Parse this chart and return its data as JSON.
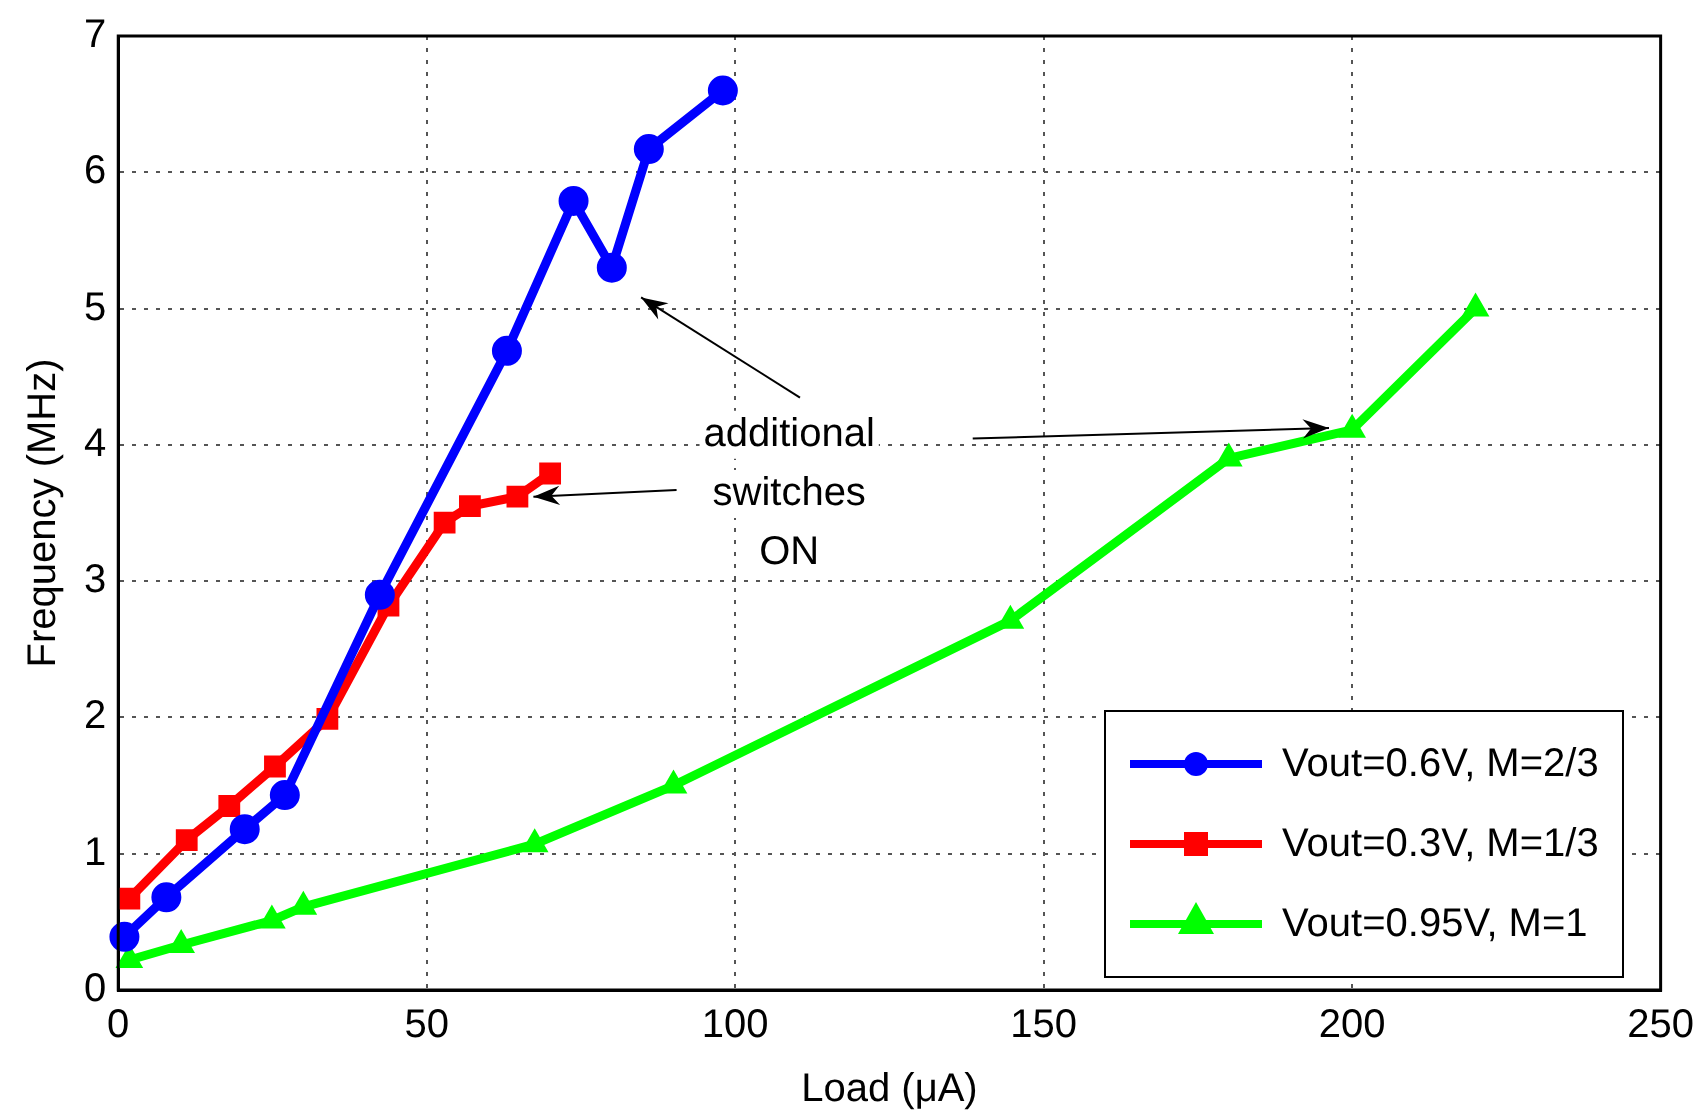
{
  "chart_data": {
    "type": "line",
    "xlabel": "Load (μA)",
    "ylabel": "Frequency (MHz)",
    "xlim": [
      0,
      250
    ],
    "xticks": [
      0,
      50,
      100,
      150,
      200,
      250
    ],
    "ylim": [
      0,
      7
    ],
    "yticks": [
      0,
      1,
      2,
      3,
      4,
      5,
      6,
      7
    ],
    "grid": true,
    "legend": "bottom right",
    "line_style": "solid",
    "annotations": [
      {
        "text": "additional\nswitches\nON",
        "x": 64.7,
        "y": 3.62
      }
    ],
    "series": [
      {
        "name": "Vout=0.6V, M=2/3",
        "color": "#0000ff",
        "marker": "circle",
        "x": [
          1,
          7.8,
          20.5,
          27,
          42.4,
          63,
          73.8,
          80,
          86,
          98
        ],
        "values": [
          0.39,
          0.68,
          1.18,
          1.43,
          2.9,
          4.69,
          5.79,
          5.3,
          6.17,
          6.6
        ]
      },
      {
        "name": "Vout=0.3V, M=1/3",
        "color": "#ff0000",
        "marker": "square",
        "x": [
          1.8,
          11.1,
          18,
          25.4,
          33.9,
          43.8,
          52.9,
          57,
          64.7,
          70
        ],
        "values": [
          0.67,
          1.1,
          1.35,
          1.64,
          1.99,
          2.82,
          3.43,
          3.55,
          3.62,
          3.79
        ]
      },
      {
        "name": "Vout=0.95V, M=1",
        "color": "#00ff00",
        "marker": "triangle",
        "x": [
          1.8,
          10.2,
          24.9,
          30,
          67.5,
          90,
          144.6,
          180,
          200,
          220
        ],
        "values": [
          0.22,
          0.33,
          0.51,
          0.61,
          1.07,
          1.5,
          2.71,
          3.9,
          4.11,
          5.0
        ]
      }
    ]
  }
}
